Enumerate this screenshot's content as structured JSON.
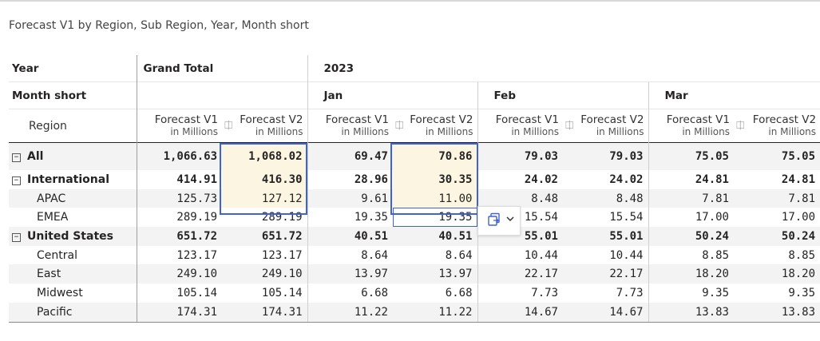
{
  "title": "Forecast V1 by Region, Sub Region, Year, Month short",
  "header": {
    "year_label": "Year",
    "month_label": "Month short",
    "grand_total": "Grand Total",
    "year_value": "2023",
    "months": [
      "Jan",
      "Feb",
      "Mar"
    ],
    "region_label": "Region",
    "measures": [
      "Forecast V1",
      "Forecast V2"
    ],
    "unit": "in Millions",
    "compare_icon": "compare-icon"
  },
  "rows": [
    {
      "label": "All",
      "level": 0,
      "values": [
        "1,066.63",
        "1,068.02",
        "69.47",
        "70.86",
        "79.03",
        "79.03",
        "75.05",
        "75.05"
      ]
    },
    {
      "label": "International",
      "level": 0,
      "values": [
        "414.91",
        "416.30",
        "28.96",
        "30.35",
        "24.02",
        "24.02",
        "24.81",
        "24.81"
      ]
    },
    {
      "label": "APAC",
      "level": 1,
      "values": [
        "125.73",
        "127.12",
        "9.61",
        "11.00",
        "8.48",
        "8.48",
        "7.81",
        "7.81"
      ]
    },
    {
      "label": "EMEA",
      "level": 1,
      "values": [
        "289.19",
        "289.19",
        "19.35",
        "19.35",
        "15.54",
        "15.54",
        "17.00",
        "17.00"
      ]
    },
    {
      "label": "United States",
      "level": 0,
      "values": [
        "651.72",
        "651.72",
        "40.51",
        "40.51",
        "55.01",
        "55.01",
        "50.24",
        "50.24"
      ]
    },
    {
      "label": "Central",
      "level": 1,
      "values": [
        "123.17",
        "123.17",
        "8.64",
        "8.64",
        "10.44",
        "10.44",
        "8.85",
        "8.85"
      ]
    },
    {
      "label": "East",
      "level": 1,
      "values": [
        "249.10",
        "249.10",
        "13.97",
        "13.97",
        "22.17",
        "22.17",
        "18.20",
        "18.20"
      ]
    },
    {
      "label": "Midwest",
      "level": 1,
      "values": [
        "105.14",
        "105.14",
        "6.68",
        "6.68",
        "7.73",
        "7.73",
        "9.35",
        "9.35"
      ]
    },
    {
      "label": "Pacific",
      "level": 1,
      "values": [
        "174.31",
        "174.31",
        "11.22",
        "11.22",
        "14.67",
        "14.67",
        "13.83",
        "13.83"
      ]
    }
  ],
  "toggle_glyph": "−",
  "colors": {
    "selection": "#3f62d6",
    "selection_fill": "#fcf5e1"
  }
}
